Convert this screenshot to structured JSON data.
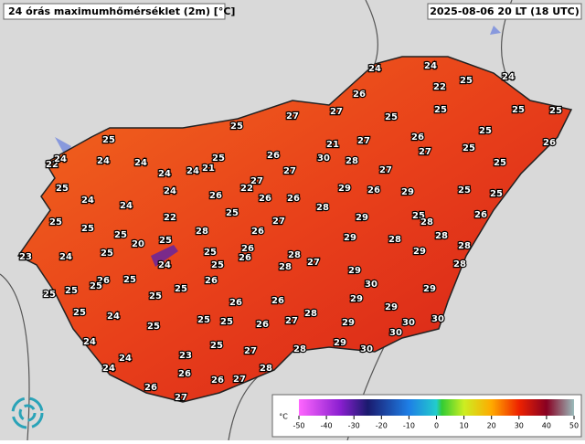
{
  "header": {
    "title": "24 órás maximumhőmérséklet (2m) [°C]",
    "timestamp": "2025-08-06 20 LT (18 UTC)"
  },
  "stations": [
    24,
    24,
    24,
    22,
    25,
    26,
    25,
    25,
    27,
    27,
    25,
    25,
    25,
    25,
    25,
    26,
    27,
    26,
    21,
    26,
    25,
    22,
    24,
    25,
    30,
    28,
    27,
    24,
    24,
    24,
    21,
    24,
    27,
    25,
    27,
    27,
    25,
    24,
    22,
    26,
    29,
    26,
    25,
    24,
    26,
    26,
    25,
    29,
    24,
    25,
    28,
    25,
    25,
    22,
    27,
    29,
    26,
    28,
    25,
    25,
    28,
    26,
    28,
    28,
    20,
    25,
    29,
    23,
    24,
    25,
    26,
    25,
    29,
    28,
    24,
    28,
    26,
    27,
    25,
    26,
    25,
    25,
    28,
    29,
    28,
    25,
    25,
    25,
    26,
    30,
    29,
    25,
    26,
    26,
    29,
    25,
    24,
    25,
    28,
    29,
    30,
    25,
    25,
    26,
    27,
    29,
    30,
    24,
    25,
    27,
    28,
    30,
    29,
    30,
    24,
    23,
    28,
    24,
    26,
    26,
    27,
    26,
    27
  ],
  "colorbar": {
    "unit": "°C",
    "ticks": [
      -50,
      -40,
      -30,
      -20,
      -10,
      0,
      10,
      20,
      30,
      40,
      50
    ]
  }
}
